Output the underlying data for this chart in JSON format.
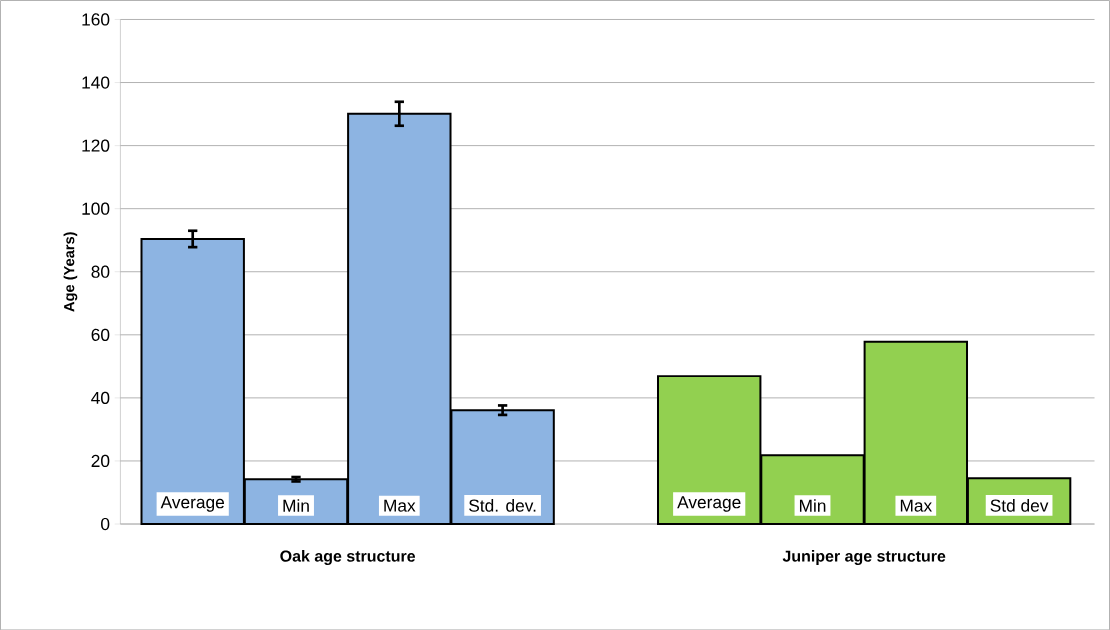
{
  "chart_data": {
    "type": "bar",
    "ylabel": "Age (Years)",
    "categories": [
      "Average",
      "Min",
      "Max",
      "Std. dev.",
      "Average",
      "Min",
      "Max",
      "Std dev"
    ],
    "values": [
      90.4,
      14.2,
      130.1,
      36.1,
      46.9,
      21.8,
      57.8,
      14.5
    ],
    "errors": [
      2.6,
      0.7,
      3.8,
      1.5,
      null,
      null,
      null,
      null
    ],
    "colors": [
      "#8db4e2",
      "#8db4e2",
      "#8db4e2",
      "#8db4e2",
      "#92d050",
      "#92d050",
      "#92d050",
      "#92d050"
    ],
    "annotations": [
      "Oak age structure",
      "Juniper age structure"
    ],
    "ylim": [
      0,
      160
    ],
    "yticks": [
      0,
      20,
      40,
      60,
      80,
      100,
      120,
      140,
      160
    ],
    "grid": "y"
  }
}
